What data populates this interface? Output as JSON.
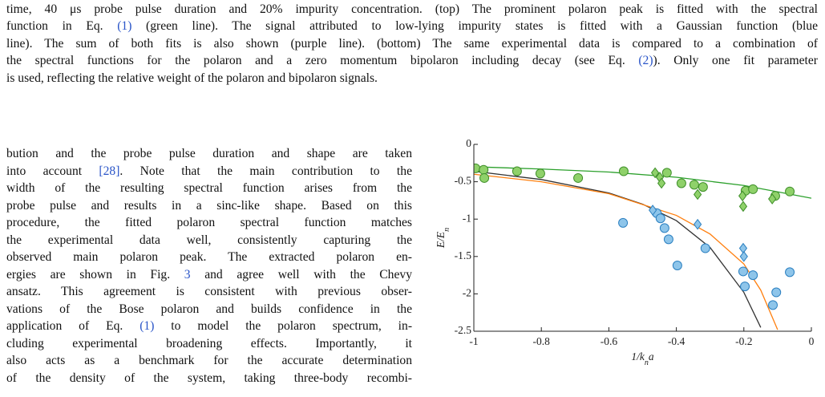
{
  "caption": [
    [
      "time, 40 μs probe pulse duration and 20% impurity concentration. (top) The prominent polaron peak is fitted with the spectral"
    ],
    [
      "function in Eq. ",
      "(1)",
      " (green line). The signal attributed to low-lying impurity states is fitted with a Gaussian function (blue"
    ],
    [
      "line). The sum of both fits is also shown (purple line). (bottom) The same experimental data is compared to a combination of"
    ],
    [
      "the spectral functions for the polaron and a zero momentum bipolaron including decay (see Eq. ",
      "(2)",
      "). Only one fit parameter"
    ],
    [
      "is used, reflecting the relative weight of the polaron and bipolaron signals."
    ]
  ],
  "body": [
    [
      "bution and the probe pulse duration and shape are taken"
    ],
    [
      "into account ",
      "[28]",
      ". Note that the main contribution to the"
    ],
    [
      "width of the resulting spectral function arises from the"
    ],
    [
      "probe pulse and results in a sinc-like shape. Based on this"
    ],
    [
      "procedure, the fitted polaron spectral function matches"
    ],
    [
      "the experimental data well, consistently capturing the"
    ],
    [
      "observed main polaron peak. The extracted polaron en-"
    ],
    [
      "ergies are shown in Fig. ",
      "3",
      " and agree well with the Chevy"
    ],
    [
      "ansatz. This agreement is consistent with previous obser-"
    ],
    [
      "vations of the Bose polaron and builds confidence in the"
    ],
    [
      "application of Eq. ",
      "(1)",
      " to model the polaron spectrum, in-"
    ],
    [
      "cluding experimental broadening effects. Importantly, it"
    ],
    [
      "also acts as a benchmark for the accurate determination"
    ],
    [
      "of the density of the system, taking three-body recombi-"
    ]
  ],
  "chart_data": {
    "type": "scatter",
    "xlabel": [
      "1/k",
      "n",
      "a"
    ],
    "ylabel": [
      "E/E",
      "n"
    ],
    "xlim": [
      -1,
      0
    ],
    "ylim": [
      -2.5,
      0
    ],
    "xticks": [
      -1,
      -0.8,
      -0.6,
      -0.4,
      -0.2,
      0
    ],
    "yticks": [
      0,
      -0.5,
      -1,
      -1.5,
      -2,
      -2.5
    ],
    "series": [
      {
        "style": "line",
        "color": "#2ca02c",
        "x": [
          -1,
          -0.8,
          -0.6,
          -0.4,
          -0.2,
          0
        ],
        "values": [
          -0.3,
          -0.33,
          -0.37,
          -0.44,
          -0.55,
          -0.72
        ]
      },
      {
        "style": "line",
        "color": "#333333",
        "x": [
          -1,
          -0.8,
          -0.6,
          -0.5,
          -0.4,
          -0.3,
          -0.2,
          -0.15
        ],
        "values": [
          -0.36,
          -0.47,
          -0.65,
          -0.8,
          -1.02,
          -1.38,
          -1.98,
          -2.45
        ]
      },
      {
        "style": "line",
        "color": "#ff7f0e",
        "x": [
          -1,
          -0.8,
          -0.6,
          -0.4,
          -0.3,
          -0.2,
          -0.15,
          -0.1
        ],
        "values": [
          -0.4,
          -0.5,
          -0.66,
          -0.95,
          -1.2,
          -1.6,
          -1.95,
          -2.48
        ]
      },
      {
        "style": "circle",
        "color": "#8fd16a",
        "edge": "#3f8f2a",
        "x": [
          -0.995,
          -0.971,
          -0.969,
          -0.872,
          -0.803,
          -0.691,
          -0.556,
          -0.428,
          -0.385,
          -0.347,
          -0.321,
          -0.195,
          -0.173,
          -0.107,
          -0.064
        ],
        "values": [
          -0.32,
          -0.34,
          -0.45,
          -0.36,
          -0.39,
          -0.45,
          -0.36,
          -0.38,
          -0.52,
          -0.54,
          -0.57,
          -0.62,
          -0.6,
          -0.69,
          -0.63
        ]
      },
      {
        "style": "diamond",
        "color": "#8fd16a",
        "edge": "#3f8f2a",
        "x": [
          -0.463,
          -0.449,
          -0.444,
          -0.337,
          -0.204,
          -0.202,
          -0.116
        ],
        "values": [
          -0.38,
          -0.44,
          -0.52,
          -0.67,
          -0.69,
          -0.83,
          -0.73
        ]
      },
      {
        "style": "circle",
        "color": "#8ec5ea",
        "edge": "#2a7fc0",
        "x": [
          -0.558,
          -0.458,
          -0.447,
          -0.435,
          -0.423,
          -0.397,
          -0.314,
          -0.202,
          -0.197,
          -0.173,
          -0.114,
          -0.104,
          -0.064
        ],
        "values": [
          -1.05,
          -0.92,
          -0.99,
          -1.12,
          -1.27,
          -1.62,
          -1.39,
          -1.7,
          -1.9,
          -1.75,
          -2.15,
          -1.98,
          -1.71
        ]
      },
      {
        "style": "diamond",
        "color": "#8ec5ea",
        "edge": "#2a7fc0",
        "x": [
          -0.47,
          -0.337,
          -0.202,
          -0.2
        ],
        "values": [
          -0.88,
          -1.07,
          -1.39,
          -1.5
        ]
      }
    ]
  }
}
